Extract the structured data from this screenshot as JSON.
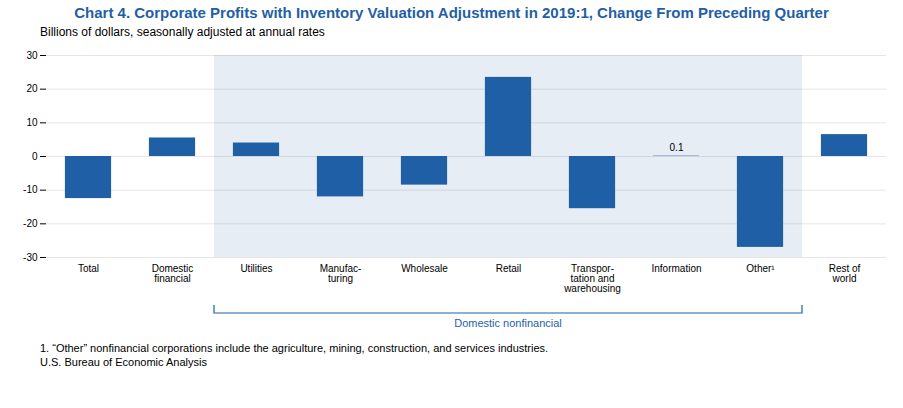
{
  "chart_data": {
    "type": "bar",
    "title": "Chart 4. Corporate Profits with Inventory Valuation Adjustment in 2019:1, Change From Preceding Quarter",
    "subtitle": "Billions of dollars, seasonally adjusted at annual rates",
    "categories": [
      "Total",
      "Domestic\nfinancial",
      "Utilities",
      "Manufac-\nturing",
      "Wholesale",
      "Retail",
      "Transpor-\ntation and\nwarehousing",
      "Information",
      "Other¹",
      "Rest of\nworld"
    ],
    "values": [
      -12.5,
      5.5,
      4.0,
      -12.0,
      -8.5,
      23.5,
      -15.5,
      0.1,
      -27.0,
      6.5
    ],
    "color": "#1F5FA6",
    "ylim": [
      -30,
      30
    ],
    "yticks": [
      -30,
      -20,
      -10,
      0,
      10,
      20,
      30
    ],
    "grid": true,
    "annotations": [
      {
        "text": "0.1",
        "category": "Information",
        "value": 0.1
      },
      {
        "text": "Domestic nonfinancial",
        "from": "Utilities",
        "to": "Other¹",
        "color": "#1F5FA6"
      }
    ],
    "footnotes": [
      "1. “Other” nonfinancial corporations include the agriculture, mining, construction, and services industries.",
      "U.S. Bureau of Economic Analysis"
    ]
  }
}
